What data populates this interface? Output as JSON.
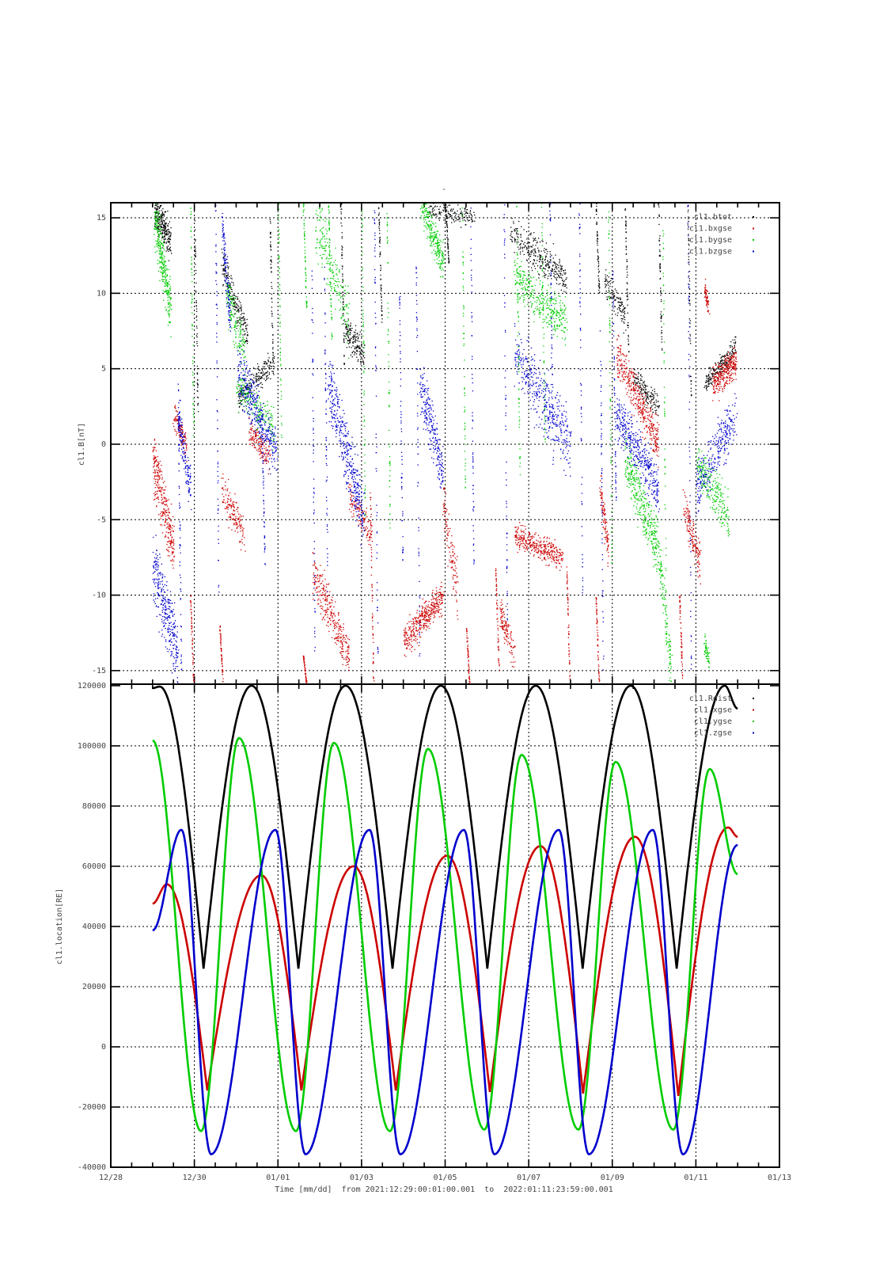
{
  "chart_data": [
    {
      "type": "scatter",
      "title": "-",
      "ylabel": "cl1.B[nT]",
      "ylim": [
        -15.9,
        16.0
      ],
      "yticks": [
        {
          "value": 15,
          "label": "15"
        },
        {
          "value": 10,
          "label": "10"
        },
        {
          "value": 5,
          "label": "5"
        },
        {
          "value": 0,
          "label": "0"
        },
        {
          "value": -5,
          "label": "-5"
        },
        {
          "value": -10,
          "label": "-10"
        },
        {
          "value": -15,
          "label": "-15"
        }
      ],
      "legend_position": "top-right",
      "series": [
        {
          "name": "cl1.btot",
          "color": "#000000",
          "clusters": [
            [
              1.04,
              1.42,
              15.5,
              13.5,
              1.0,
              260
            ],
            [
              2.65,
              3.26,
              12,
              7,
              1.0,
              200
            ],
            [
              3.03,
              3.9,
              3,
              5.5,
              0.8,
              200
            ],
            [
              5.6,
              6.06,
              7.5,
              6,
              0.8,
              160
            ],
            [
              7.57,
              8.7,
              15.6,
              15,
              0.5,
              160
            ],
            [
              9.56,
              10.9,
              14,
              11,
              1.0,
              320
            ],
            [
              11.8,
              12.3,
              11,
              8.5,
              0.8,
              120
            ],
            [
              12.5,
              13.1,
              4.5,
              2.5,
              0.7,
              160
            ],
            [
              14.2,
              14.96,
              4,
              6.5,
              0.6,
              200
            ]
          ],
          "streaks": [
            [
              2.0,
              15,
              2
            ],
            [
              3.8,
              15,
              5
            ],
            [
              5.5,
              16,
              5
            ],
            [
              6.4,
              16,
              8
            ],
            [
              8.0,
              16,
              12
            ],
            [
              11.6,
              16,
              10
            ],
            [
              12.3,
              16,
              6
            ],
            [
              13.1,
              16,
              6
            ],
            [
              13.8,
              16,
              3
            ]
          ]
        },
        {
          "name": "cl1.bxgse",
          "color": "#cc0000",
          "clusters": [
            [
              1.0,
              1.5,
              -1,
              -7,
              1.6,
              300
            ],
            [
              1.5,
              1.8,
              2,
              0,
              0.8,
              120
            ],
            [
              2.65,
              3.2,
              -3,
              -6,
              1.0,
              150
            ],
            [
              3.3,
              3.8,
              1,
              -1,
              0.8,
              150
            ],
            [
              4.83,
              5.7,
              -8.5,
              -14,
              1.2,
              300
            ],
            [
              5.7,
              6.25,
              -3.5,
              -6,
              0.8,
              120
            ],
            [
              7.0,
              7.95,
              -13,
              -10,
              0.9,
              400
            ],
            [
              7.95,
              8.3,
              -4,
              -10,
              1.5,
              120
            ],
            [
              9.3,
              9.65,
              -11,
              -14,
              1.0,
              120
            ],
            [
              9.65,
              10.8,
              -6,
              -7.5,
              0.7,
              350
            ],
            [
              12.1,
              13.1,
              6,
              0,
              1.2,
              400
            ],
            [
              11.7,
              11.9,
              -3,
              -7,
              1.0,
              100
            ],
            [
              13.7,
              14.1,
              -4,
              -8,
              1.1,
              150
            ],
            [
              14.2,
              14.3,
              10.5,
              9,
              0.5,
              60
            ],
            [
              14.4,
              14.96,
              4,
              5.5,
              0.9,
              300
            ]
          ],
          "streaks": [
            [
              1.9,
              -10,
              -16
            ],
            [
              2.6,
              -12,
              -16
            ],
            [
              4.6,
              -14,
              -16
            ],
            [
              6.2,
              -3,
              -16
            ],
            [
              8.5,
              -12,
              -16
            ],
            [
              9.2,
              -8,
              -15
            ],
            [
              10.9,
              -8,
              -16
            ],
            [
              11.6,
              -10,
              -16
            ],
            [
              13.6,
              -10,
              -16
            ]
          ]
        },
        {
          "name": "cl1.bygse",
          "color": "#00cc00",
          "clusters": [
            [
              1.04,
              1.42,
              15,
              9,
              1.5,
              300
            ],
            [
              2.75,
              3.2,
              10,
              6,
              1.2,
              150
            ],
            [
              3.0,
              3.9,
              4,
              1,
              1.2,
              200
            ],
            [
              4.9,
              5.7,
              15,
              8,
              2.0,
              200
            ],
            [
              7.4,
              7.95,
              16,
              12,
              1.0,
              250
            ],
            [
              9.65,
              10.9,
              11,
              8,
              1.2,
              350
            ],
            [
              12.3,
              13.1,
              -1,
              -7,
              1.5,
              350
            ],
            [
              14.0,
              14.8,
              -1,
              -5,
              1.2,
              250
            ],
            [
              14.2,
              14.3,
              -13,
              -14.5,
              0.6,
              50
            ],
            [
              13.1,
              13.4,
              -7,
              -15,
              1.2,
              120
            ]
          ],
          "streaks": [
            [
              1.9,
              16,
              0
            ],
            [
              4.0,
              16,
              0
            ],
            [
              4.6,
              16,
              9
            ],
            [
              5.2,
              16,
              7
            ],
            [
              6.0,
              16,
              -5
            ],
            [
              6.6,
              16,
              -6
            ],
            [
              8.4,
              16,
              -3
            ],
            [
              9.7,
              16,
              -2
            ],
            [
              10.3,
              16,
              0
            ],
            [
              11.9,
              16,
              -8
            ],
            [
              13.2,
              16,
              -13
            ]
          ]
        },
        {
          "name": "cl1.bzgse",
          "color": "#0000cc",
          "clusters": [
            [
              1.0,
              1.6,
              -8,
              -14,
              2.0,
              320
            ],
            [
              1.6,
              1.9,
              2,
              -3,
              1.2,
              150
            ],
            [
              2.65,
              2.85,
              15,
              8,
              1.2,
              120
            ],
            [
              3.03,
              3.98,
              5,
              -1,
              1.5,
              350
            ],
            [
              5.2,
              6.06,
              4,
              -5,
              1.8,
              400
            ],
            [
              7.4,
              7.95,
              4,
              -2,
              1.5,
              250
            ],
            [
              9.65,
              11.0,
              6,
              0,
              1.8,
              400
            ],
            [
              12.1,
              13.1,
              2,
              -3,
              1.3,
              400
            ],
            [
              14.0,
              14.96,
              -3,
              2,
              1.5,
              300
            ]
          ],
          "streaks": [
            [
              1.6,
              5,
              -15
            ],
            [
              2.5,
              16,
              -12
            ],
            [
              3.6,
              3,
              -8
            ],
            [
              4.8,
              12,
              -14
            ],
            [
              5.1,
              12,
              -10
            ],
            [
              6.3,
              16,
              -15
            ],
            [
              6.9,
              10,
              -8
            ],
            [
              7.3,
              12,
              -14
            ],
            [
              8.6,
              16,
              -8
            ],
            [
              9.4,
              16,
              -12
            ],
            [
              10.5,
              16,
              -2
            ],
            [
              11.2,
              16,
              -10
            ],
            [
              11.7,
              8,
              -16
            ],
            [
              12.0,
              12,
              -4
            ],
            [
              13.8,
              16,
              -15
            ]
          ]
        }
      ]
    },
    {
      "type": "line",
      "ylabel": "cl1.location[RE]",
      "ylim": [
        -40000,
        120500
      ],
      "yticks": [
        {
          "value": 120000,
          "label": "120000"
        },
        {
          "value": 100000,
          "label": "100000"
        },
        {
          "value": 80000,
          "label": "80000"
        },
        {
          "value": 60000,
          "label": "60000"
        },
        {
          "value": 40000,
          "label": "40000"
        },
        {
          "value": 20000,
          "label": "20000"
        },
        {
          "value": 0,
          "label": "0"
        },
        {
          "value": -20000,
          "label": "-20000"
        },
        {
          "value": -40000,
          "label": "-40000"
        }
      ],
      "legend_position": "top-right",
      "series": [
        {
          "name": "cl1.Rdist",
          "color": "#000000",
          "cusp": true,
          "points": [
            [
              1.0,
              119200
            ],
            [
              1.17,
              119700
            ],
            [
              2.22,
              26000
            ],
            [
              3.37,
              120000
            ],
            [
              4.49,
              26000
            ],
            [
              5.62,
              120000
            ],
            [
              6.74,
              26000
            ],
            [
              7.9,
              120000
            ],
            [
              9.01,
              26000
            ],
            [
              10.17,
              120000
            ],
            [
              11.29,
              26000
            ],
            [
              12.44,
              120000
            ],
            [
              13.54,
              26000
            ],
            [
              14.69,
              120000
            ],
            [
              15.0,
              112400
            ]
          ]
        },
        {
          "name": "cl1.xgse",
          "color": "#cc0000",
          "cusp": true,
          "points": [
            [
              1.0,
              47600
            ],
            [
              1.34,
              54000
            ],
            [
              2.31,
              -14500
            ],
            [
              3.6,
              57000
            ],
            [
              4.56,
              -14500
            ],
            [
              5.81,
              60000
            ],
            [
              6.82,
              -14500
            ],
            [
              8.05,
              63500
            ],
            [
              9.07,
              -15000
            ],
            [
              10.28,
              66700
            ],
            [
              11.3,
              -15500
            ],
            [
              12.54,
              69800
            ],
            [
              13.58,
              -16300
            ],
            [
              14.77,
              72900
            ],
            [
              15.0,
              69800
            ]
          ]
        },
        {
          "name": "cl1.ygse",
          "color": "#00cc00",
          "cusp": false,
          "points": [
            [
              1.0,
              101800
            ],
            [
              2.16,
              -28000
            ],
            [
              3.07,
              102600
            ],
            [
              4.43,
              -28000
            ],
            [
              5.34,
              101000
            ],
            [
              6.68,
              -28000
            ],
            [
              7.59,
              99000
            ],
            [
              8.94,
              -27500
            ],
            [
              9.83,
              97000
            ],
            [
              11.19,
              -27500
            ],
            [
              12.08,
              94700
            ],
            [
              13.46,
              -27500
            ],
            [
              14.33,
              92300
            ],
            [
              15.0,
              57400
            ]
          ]
        },
        {
          "name": "cl1.zgse",
          "color": "#0000cc",
          "cusp": false,
          "points": [
            [
              1.0,
              38700
            ],
            [
              1.69,
              72100
            ],
            [
              2.4,
              -35700
            ],
            [
              3.94,
              72100
            ],
            [
              4.66,
              -35700
            ],
            [
              6.19,
              72100
            ],
            [
              6.93,
              -35700
            ],
            [
              8.45,
              72100
            ],
            [
              9.18,
              -35700
            ],
            [
              10.72,
              72100
            ],
            [
              11.44,
              -35700
            ],
            [
              12.97,
              72100
            ],
            [
              13.69,
              -35700
            ],
            [
              15.0,
              67100
            ]
          ]
        }
      ]
    }
  ],
  "xaxis": {
    "label": "Time [mm/dd]  from 2021:12:29:00:01:00.001  to  2022:01:11:23:59:00.001",
    "range_days_since_1228": [
      0,
      16
    ],
    "ticks": [
      {
        "day": 0,
        "label": "12/28"
      },
      {
        "day": 2,
        "label": "12/30"
      },
      {
        "day": 4,
        "label": "01/01"
      },
      {
        "day": 6,
        "label": "01/03"
      },
      {
        "day": 8,
        "label": "01/05"
      },
      {
        "day": 10,
        "label": "01/07"
      },
      {
        "day": 12,
        "label": "01/09"
      },
      {
        "day": 14,
        "label": "01/11"
      },
      {
        "day": 16,
        "label": "01/13"
      }
    ],
    "minor_step_days": 0.5
  }
}
